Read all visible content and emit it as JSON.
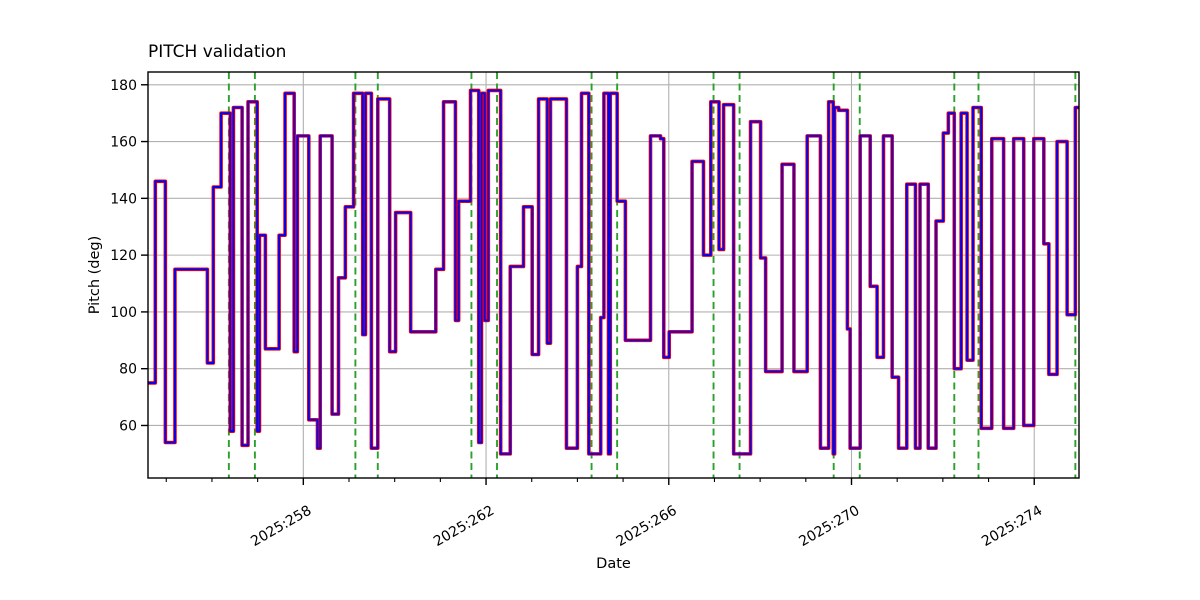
{
  "chart_data": {
    "type": "line",
    "title": "PITCH validation",
    "xlabel": "Date",
    "ylabel": "Pitch (deg)",
    "xlim": [
      254.6,
      274.98
    ],
    "ylim": [
      41.5,
      184.5
    ],
    "grid": true,
    "grid_color": "#b0b0b0",
    "background": "#ffffff",
    "spine_color": "#000000",
    "yticks": [
      60,
      80,
      100,
      120,
      140,
      160,
      180
    ],
    "xticks": [
      {
        "value": 258,
        "label": "2025:258"
      },
      {
        "value": 262,
        "label": "2025:262"
      },
      {
        "value": 266,
        "label": "2025:266"
      },
      {
        "value": 270,
        "label": "2025:270"
      },
      {
        "value": 274,
        "label": "2025:274"
      }
    ],
    "minor_xticks": [
      255,
      256,
      257,
      259,
      260,
      261,
      263,
      264,
      265,
      267,
      268,
      269,
      271,
      272,
      273
    ],
    "legend": "none",
    "series": [
      {
        "name": "pitch-reference-line",
        "color": "#ff0000",
        "line_width": 3.6
      },
      {
        "name": "pitch-validated-line",
        "color": "#0000f0",
        "line_width": 1.9
      }
    ],
    "step_mode": "post",
    "steps": [
      [
        254.6,
        75
      ],
      [
        254.76,
        146
      ],
      [
        254.98,
        54
      ],
      [
        255.19,
        115
      ],
      [
        255.9,
        82
      ],
      [
        256.03,
        144
      ],
      [
        256.2,
        170
      ],
      [
        256.4,
        58
      ],
      [
        256.47,
        172
      ],
      [
        256.66,
        53
      ],
      [
        256.79,
        174
      ],
      [
        256.99,
        58
      ],
      [
        257.04,
        127
      ],
      [
        257.17,
        87
      ],
      [
        257.47,
        127
      ],
      [
        257.6,
        177
      ],
      [
        257.8,
        86
      ],
      [
        257.87,
        162
      ],
      [
        258.12,
        62
      ],
      [
        258.31,
        52
      ],
      [
        258.37,
        162
      ],
      [
        258.63,
        64
      ],
      [
        258.77,
        112
      ],
      [
        258.92,
        137
      ],
      [
        259.1,
        177
      ],
      [
        259.3,
        92
      ],
      [
        259.36,
        177
      ],
      [
        259.49,
        52
      ],
      [
        259.63,
        175
      ],
      [
        259.89,
        86
      ],
      [
        260.02,
        135
      ],
      [
        260.35,
        93
      ],
      [
        260.9,
        115
      ],
      [
        261.07,
        174
      ],
      [
        261.33,
        97
      ],
      [
        261.4,
        139
      ],
      [
        261.66,
        178
      ],
      [
        261.84,
        54
      ],
      [
        261.9,
        177
      ],
      [
        261.97,
        97
      ],
      [
        262.05,
        178
      ],
      [
        262.32,
        50
      ],
      [
        262.53,
        116
      ],
      [
        262.82,
        137
      ],
      [
        263.01,
        85
      ],
      [
        263.15,
        175
      ],
      [
        263.34,
        89
      ],
      [
        263.41,
        175
      ],
      [
        263.76,
        52
      ],
      [
        264.0,
        116
      ],
      [
        264.09,
        177
      ],
      [
        264.25,
        50
      ],
      [
        264.51,
        98
      ],
      [
        264.58,
        177
      ],
      [
        264.68,
        50
      ],
      [
        264.72,
        177
      ],
      [
        264.87,
        139
      ],
      [
        265.05,
        90
      ],
      [
        265.6,
        162
      ],
      [
        265.82,
        161
      ],
      [
        265.89,
        84
      ],
      [
        266.01,
        93
      ],
      [
        266.51,
        153
      ],
      [
        266.76,
        120
      ],
      [
        266.92,
        174
      ],
      [
        267.1,
        122
      ],
      [
        267.2,
        173
      ],
      [
        267.42,
        50
      ],
      [
        267.79,
        167
      ],
      [
        268.01,
        119
      ],
      [
        268.12,
        79
      ],
      [
        268.48,
        152
      ],
      [
        268.74,
        79
      ],
      [
        269.03,
        162
      ],
      [
        269.32,
        52
      ],
      [
        269.5,
        174
      ],
      [
        269.6,
        50
      ],
      [
        269.63,
        172
      ],
      [
        269.72,
        171
      ],
      [
        269.91,
        94
      ],
      [
        269.97,
        52
      ],
      [
        270.19,
        162
      ],
      [
        270.41,
        109
      ],
      [
        270.56,
        84
      ],
      [
        270.7,
        162
      ],
      [
        270.89,
        77
      ],
      [
        271.03,
        52
      ],
      [
        271.21,
        145
      ],
      [
        271.4,
        52
      ],
      [
        271.5,
        145
      ],
      [
        271.68,
        52
      ],
      [
        271.85,
        132
      ],
      [
        272.01,
        163
      ],
      [
        272.12,
        170
      ],
      [
        272.25,
        80
      ],
      [
        272.4,
        170
      ],
      [
        272.53,
        83
      ],
      [
        272.66,
        172
      ],
      [
        272.84,
        59
      ],
      [
        273.07,
        161
      ],
      [
        273.33,
        59
      ],
      [
        273.55,
        161
      ],
      [
        273.77,
        60
      ],
      [
        273.99,
        161
      ],
      [
        274.21,
        124
      ],
      [
        274.32,
        78
      ],
      [
        274.5,
        160
      ],
      [
        274.72,
        99
      ],
      [
        274.9,
        172
      ]
    ],
    "vlines": {
      "name": "event-marker-vlines",
      "color": "#2ca02c",
      "style": "dashed",
      "days": [
        256.37,
        256.94,
        259.14,
        259.63,
        261.68,
        262.24,
        264.31,
        264.87,
        266.98,
        267.55,
        269.61,
        270.18,
        272.25,
        272.78,
        274.9
      ]
    }
  }
}
